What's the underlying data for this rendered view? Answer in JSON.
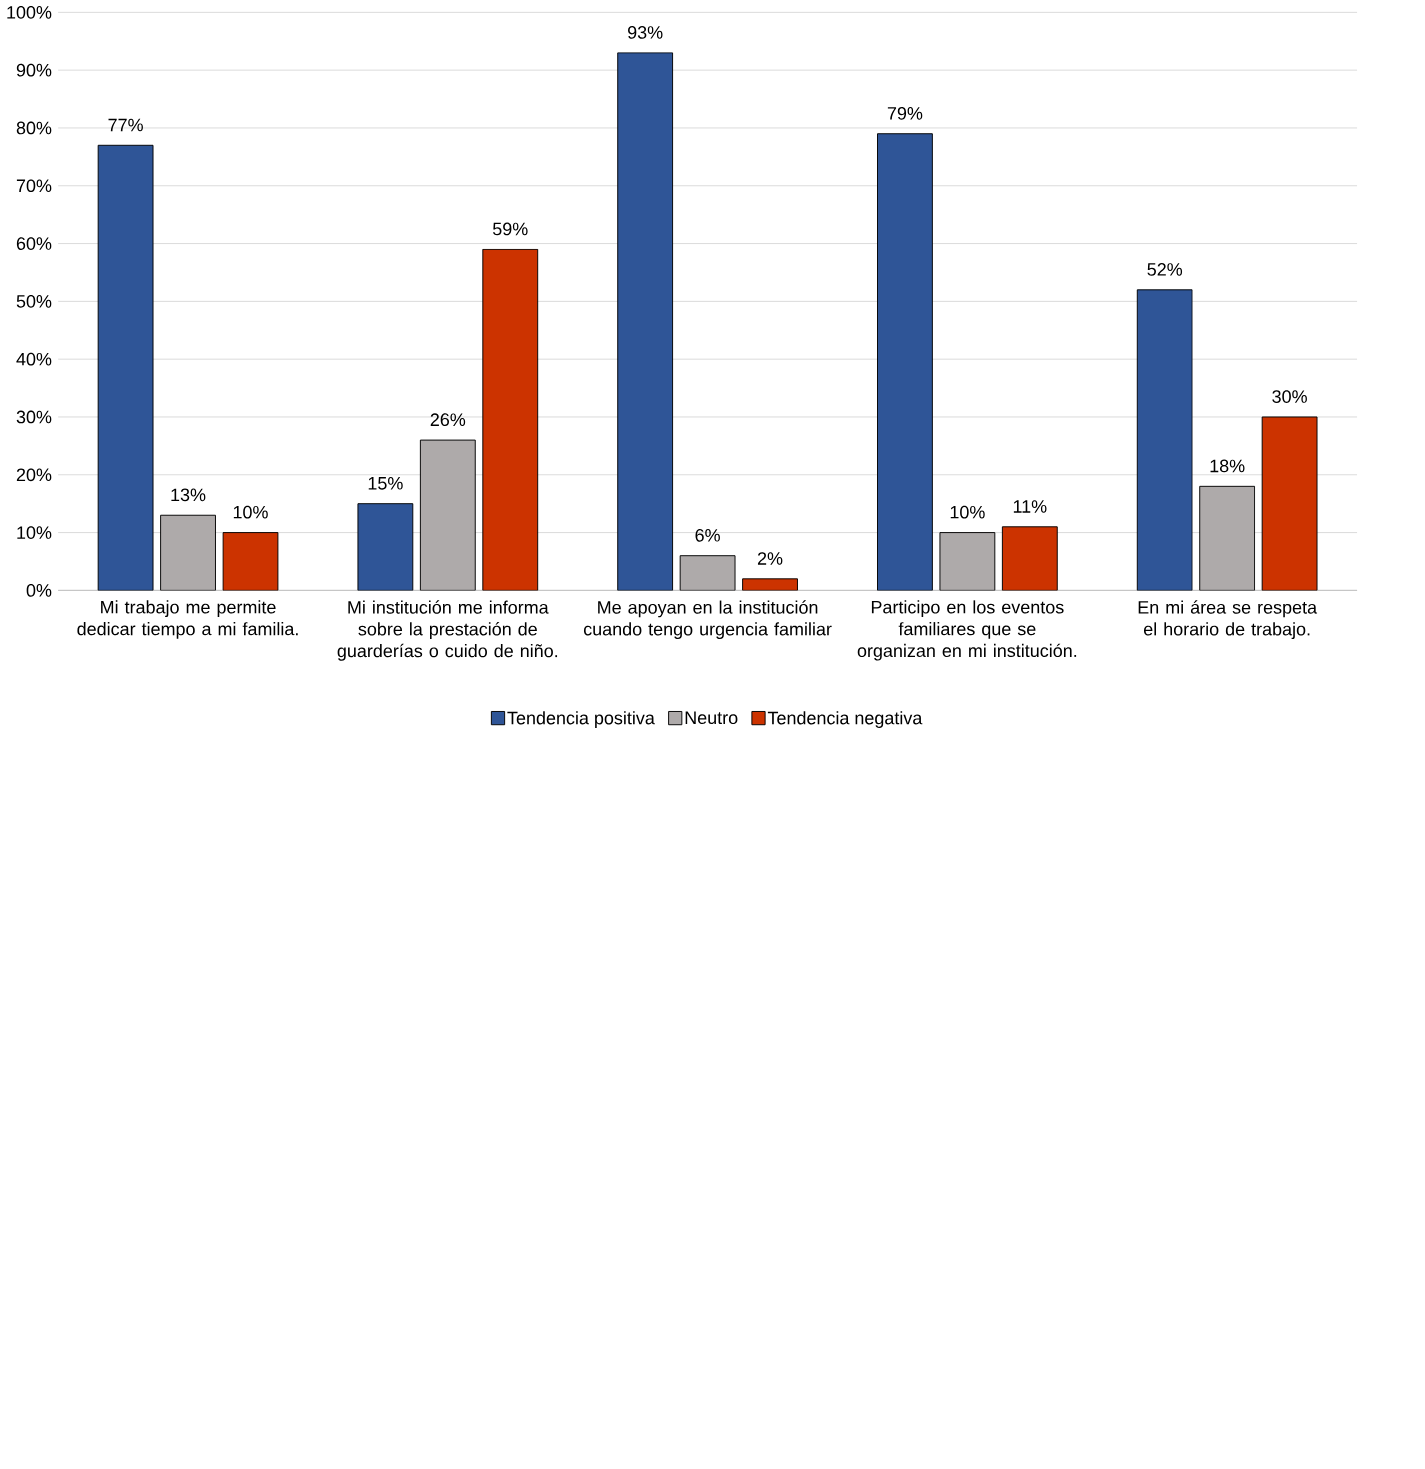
{
  "chart_data": {
    "type": "bar",
    "categories": [
      "Mi trabajo me permite dedicar tiempo a mi familia.",
      "Mi institución me informa sobre la prestación de guarderías o cuido de niño.",
      "Me apoyan en la institución cuando tengo urgencia familiar",
      "Participo en los eventos familiares que se organizan en mi institución.",
      "En mi área se respeta el horario de trabajo."
    ],
    "series": [
      {
        "name": "Tendencia positiva",
        "color": "#2f5597",
        "values": [
          77,
          15,
          93,
          79,
          52
        ],
        "value_labels": [
          "77%",
          "15%",
          "93%",
          "79%",
          "52%"
        ]
      },
      {
        "name": "Neutro",
        "color": "#aeaaaa",
        "values": [
          13,
          26,
          6,
          10,
          18
        ],
        "value_labels": [
          "13%",
          "26%",
          "6%",
          "10%",
          "18%"
        ]
      },
      {
        "name": "Tendencia negativa",
        "color": "#cc3300",
        "values": [
          10,
          59,
          2,
          11,
          30
        ],
        "value_labels": [
          "10%",
          "59%",
          "2%",
          "11%",
          "30%"
        ]
      }
    ],
    "ylim": [
      0,
      100
    ],
    "yticks": [
      {
        "value": 0,
        "label": "0%"
      },
      {
        "value": 10,
        "label": "10%"
      },
      {
        "value": 20,
        "label": "20%"
      },
      {
        "value": 30,
        "label": "30%"
      },
      {
        "value": 40,
        "label": "40%"
      },
      {
        "value": 50,
        "label": "50%"
      },
      {
        "value": 60,
        "label": "60%"
      },
      {
        "value": 70,
        "label": "70%"
      },
      {
        "value": 80,
        "label": "80%"
      },
      {
        "value": 90,
        "label": "90%"
      },
      {
        "value": 100,
        "label": "100%"
      }
    ],
    "grid": "y",
    "legend": "bottom"
  }
}
